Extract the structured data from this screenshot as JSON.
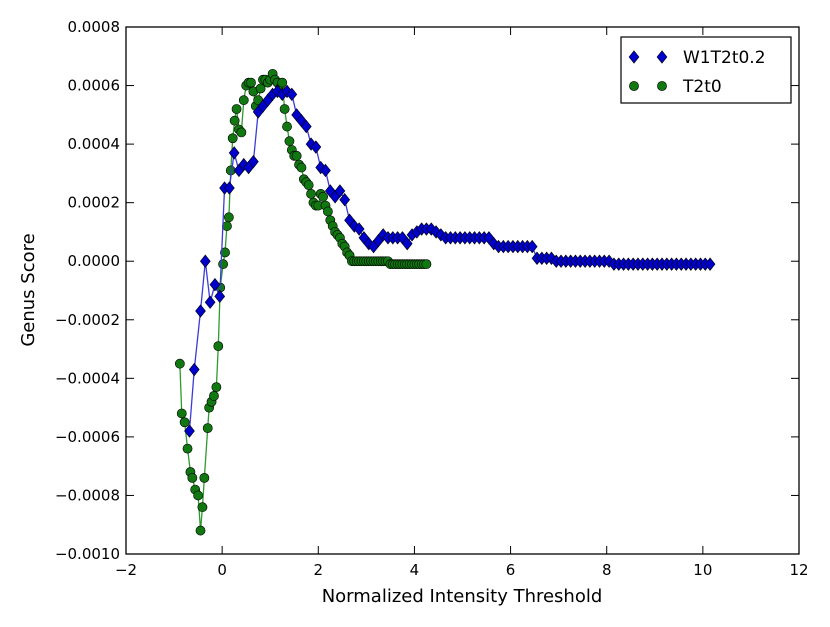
{
  "chart_data": {
    "type": "line",
    "title": "",
    "xlabel": "Normalized Intensity Threshold",
    "ylabel": "Genus Score",
    "xlim": [
      -2,
      12
    ],
    "ylim": [
      -0.001,
      0.0008
    ],
    "xticks": [
      -2,
      0,
      2,
      4,
      6,
      8,
      10,
      12
    ],
    "xtick_labels": [
      "−2",
      "0",
      "2",
      "4",
      "6",
      "8",
      "10",
      "12"
    ],
    "yticks": [
      -0.001,
      -0.0008,
      -0.0006,
      -0.0004,
      -0.0002,
      0.0,
      0.0002,
      0.0004,
      0.0006,
      0.0008
    ],
    "ytick_labels": [
      "−0.0010",
      "−0.0008",
      "−0.0006",
      "−0.0004",
      "−0.0002",
      "0.0000",
      "0.0002",
      "0.0004",
      "0.0006",
      "0.0008"
    ],
    "grid": false,
    "legend_position": "top-right",
    "series": [
      {
        "name": "W1T2t0.2",
        "color": "#0000cc",
        "line_color": "#3b3bdb",
        "marker": "diamond",
        "x": [
          -0.68,
          -0.58,
          -0.45,
          -0.35,
          -0.25,
          -0.15,
          -0.05,
          0.05,
          0.15,
          0.25,
          0.35,
          0.45,
          0.55,
          0.65,
          0.75,
          0.85,
          0.95,
          1.05,
          1.15,
          1.25,
          1.35,
          1.45,
          1.55,
          1.65,
          1.75,
          1.85,
          1.95,
          2.05,
          2.15,
          2.25,
          2.35,
          2.45,
          2.55,
          2.65,
          2.75,
          2.85,
          2.95,
          3.05,
          3.15,
          3.25,
          3.35,
          3.45,
          3.55,
          3.65,
          3.75,
          3.85,
          3.95,
          4.05,
          4.15,
          4.25,
          4.35,
          4.45,
          4.55,
          4.65,
          4.75,
          4.85,
          4.95,
          5.05,
          5.15,
          5.25,
          5.35,
          5.45,
          5.55,
          5.65,
          5.75,
          5.85,
          5.95,
          6.05,
          6.15,
          6.25,
          6.35,
          6.45,
          6.55,
          6.65,
          6.75,
          6.85,
          6.95,
          7.05,
          7.15,
          7.25,
          7.35,
          7.45,
          7.55,
          7.65,
          7.75,
          7.85,
          7.95,
          8.05,
          8.15,
          8.25,
          8.35,
          8.45,
          8.55,
          8.65,
          8.75,
          8.85,
          8.95,
          9.05,
          9.15,
          9.25,
          9.35,
          9.45,
          9.55,
          9.65,
          9.75,
          9.85,
          9.95,
          10.05,
          10.15
        ],
        "y": [
          -0.00058,
          -0.00037,
          -0.00017,
          0.0,
          -0.00014,
          -8e-05,
          -0.00012,
          0.00025,
          0.00025,
          0.00037,
          0.00031,
          0.00033,
          0.00032,
          0.00034,
          0.00051,
          0.00053,
          0.00055,
          0.00057,
          0.00058,
          0.00057,
          0.00058,
          0.00057,
          0.0005,
          0.00048,
          0.00046,
          0.0004,
          0.00039,
          0.00032,
          0.00031,
          0.00024,
          0.00022,
          0.00024,
          0.00021,
          0.00014,
          0.00012,
          0.00011,
          8e-05,
          6e-05,
          5e-05,
          7e-05,
          9e-05,
          8e-05,
          8e-05,
          8e-05,
          8e-05,
          6e-05,
          9e-05,
          0.0001,
          0.00011,
          0.00011,
          0.00011,
          0.0001,
          9e-05,
          8e-05,
          8e-05,
          8e-05,
          8e-05,
          8e-05,
          8e-05,
          8e-05,
          8e-05,
          8e-05,
          8e-05,
          6e-05,
          5e-05,
          5e-05,
          5e-05,
          5e-05,
          5e-05,
          5e-05,
          5e-05,
          5e-05,
          1e-05,
          1e-05,
          1e-05,
          1e-05,
          0.0,
          0.0,
          0.0,
          0.0,
          0.0,
          0.0,
          0.0,
          0.0,
          0.0,
          0.0,
          0.0,
          0.0,
          -1e-05,
          -1e-05,
          -1e-05,
          -1e-05,
          -1e-05,
          -1e-05,
          -1e-05,
          -1e-05,
          -1e-05,
          -1e-05,
          -1e-05,
          -1e-05,
          -1e-05,
          -1e-05,
          -1e-05,
          -1e-05,
          -1e-05,
          -1e-05,
          -1e-05,
          -1e-05,
          -1e-05
        ]
      },
      {
        "name": "T2t0",
        "color": "#117711",
        "line_color": "#2e9a2e",
        "marker": "circle",
        "x": [
          -0.88,
          -0.84,
          -0.78,
          -0.72,
          -0.66,
          -0.62,
          -0.56,
          -0.5,
          -0.45,
          -0.41,
          -0.37,
          -0.3,
          -0.27,
          -0.22,
          -0.17,
          -0.12,
          -0.08,
          -0.04,
          0.02,
          0.06,
          0.1,
          0.14,
          0.18,
          0.22,
          0.26,
          0.3,
          0.35,
          0.4,
          0.45,
          0.5,
          0.55,
          0.6,
          0.65,
          0.7,
          0.75,
          0.8,
          0.85,
          0.9,
          0.95,
          1.0,
          1.05,
          1.1,
          1.15,
          1.2,
          1.25,
          1.3,
          1.35,
          1.4,
          1.45,
          1.5,
          1.55,
          1.6,
          1.65,
          1.7,
          1.75,
          1.8,
          1.85,
          1.9,
          1.95,
          2.0,
          2.05,
          2.1,
          2.15,
          2.2,
          2.25,
          2.3,
          2.35,
          2.4,
          2.45,
          2.5,
          2.55,
          2.6,
          2.65,
          2.7,
          2.75,
          2.8,
          2.85,
          2.9,
          2.95,
          3.0,
          3.05,
          3.1,
          3.15,
          3.2,
          3.25,
          3.3,
          3.35,
          3.4,
          3.45,
          3.5,
          3.55,
          3.6,
          3.65,
          3.7,
          3.75,
          3.8,
          3.85,
          3.9,
          3.95,
          4.0,
          4.05,
          4.1,
          4.15,
          4.2,
          4.25
        ],
        "y": [
          -0.00035,
          -0.00052,
          -0.00055,
          -0.00064,
          -0.00072,
          -0.00074,
          -0.00078,
          -0.0008,
          -0.00092,
          -0.00084,
          -0.00074,
          -0.00057,
          -0.0005,
          -0.00048,
          -0.00046,
          -0.00043,
          -0.00029,
          -9e-05,
          -1e-05,
          3e-05,
          0.00012,
          0.00015,
          0.00031,
          0.00042,
          0.00048,
          0.00052,
          0.00045,
          0.00044,
          0.00055,
          0.0006,
          0.00061,
          0.00061,
          0.00058,
          0.00053,
          0.00055,
          0.00059,
          0.00062,
          0.00062,
          0.00061,
          0.00062,
          0.00064,
          0.00062,
          0.00061,
          0.00059,
          0.00061,
          0.00052,
          0.00046,
          0.00041,
          0.00038,
          0.00036,
          0.00036,
          0.00033,
          0.00032,
          0.00028,
          0.00027,
          0.00026,
          0.00023,
          0.0002,
          0.00019,
          0.00019,
          0.00023,
          0.00022,
          0.00019,
          0.00017,
          0.00014,
          0.00012,
          0.0001,
          9e-05,
          8e-05,
          6e-05,
          5e-05,
          3e-05,
          2e-05,
          0.0,
          0.0,
          0.0,
          0.0,
          0.0,
          0.0,
          0.0,
          0.0,
          0.0,
          0.0,
          0.0,
          0.0,
          0.0,
          0.0,
          0.0,
          0.0,
          -1e-05,
          -1e-05,
          -1e-05,
          -1e-05,
          -1e-05,
          -1e-05,
          -1e-05,
          -1e-05,
          -1e-05,
          -1e-05,
          -1e-05,
          -1e-05,
          -1e-05,
          -1e-05,
          -1e-05,
          -1e-05
        ]
      }
    ]
  }
}
